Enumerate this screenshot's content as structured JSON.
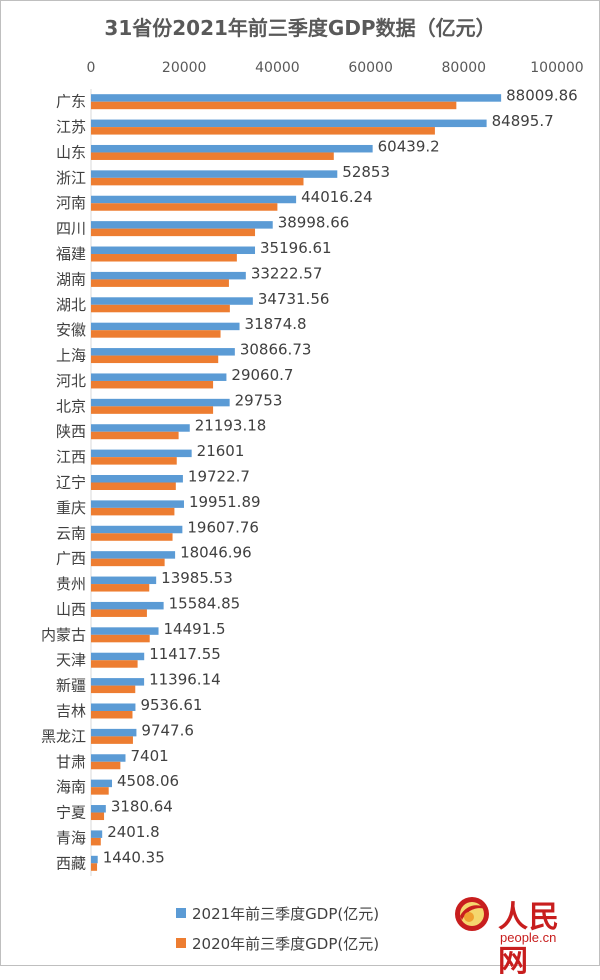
{
  "chart_data": {
    "type": "bar",
    "orientation": "horizontal",
    "title": "31省份2021年前三季度GDP数据（亿元）",
    "xlim": [
      0,
      100000
    ],
    "ticks": [
      "0",
      "20000",
      "40000",
      "60000",
      "80000",
      "100000"
    ],
    "categories": [
      "广东",
      "江苏",
      "山东",
      "浙江",
      "河南",
      "四川",
      "福建",
      "湖南",
      "湖北",
      "安徽",
      "上海",
      "河北",
      "北京",
      "陕西",
      "江西",
      "辽宁",
      "重庆",
      "云南",
      "广西",
      "贵州",
      "山西",
      "内蒙古",
      "天津",
      "新疆",
      "吉林",
      "黑龙江",
      "甘肃",
      "海南",
      "宁夏",
      "青海",
      "西藏"
    ],
    "series": [
      {
        "name": "2021年前三季度GDP(亿元)",
        "color": "#5b9bd5",
        "values": [
          88009.86,
          84895.7,
          60439.2,
          52853,
          44016.24,
          38998.66,
          35196.61,
          33222.57,
          34731.56,
          31874.8,
          30866.73,
          29060.7,
          29753,
          21193.18,
          21601,
          19722.7,
          19951.89,
          19607.76,
          18046.96,
          13985.53,
          15584.85,
          14491.5,
          11417.55,
          11396.14,
          9536.61,
          9747.6,
          7401,
          4508.06,
          3180.64,
          2401.8,
          1440.35
        ],
        "labels": [
          "88009.86",
          "84895.7",
          "60439.2",
          "52853",
          "44016.24",
          "38998.66",
          "35196.61",
          "33222.57",
          "34731.56",
          "31874.8",
          "30866.73",
          "29060.7",
          "29753",
          "21193.18",
          "21601",
          "19722.7",
          "19951.89",
          "19607.76",
          "18046.96",
          "13985.53",
          "15584.85",
          "14491.5",
          "11417.55",
          "11396.14",
          "9536.61",
          "9747.6",
          "7401",
          "4508.06",
          "3180.64",
          "2401.8",
          "1440.35"
        ]
      },
      {
        "name": "2020年前三季度GDP(亿元)",
        "color": "#ed7d31",
        "values": [
          78400,
          73800,
          52100,
          45600,
          40000,
          35200,
          31300,
          29600,
          29800,
          27800,
          27300,
          26200,
          26200,
          18800,
          18400,
          18200,
          17900,
          17500,
          15800,
          12500,
          12000,
          12600,
          10000,
          9500,
          8900,
          9000,
          6300,
          3800,
          2800,
          2100,
          1300
        ]
      }
    ],
    "legend_position": "bottom",
    "grid": false
  },
  "watermark": {
    "brand": "人民网",
    "url": "people.cn"
  }
}
